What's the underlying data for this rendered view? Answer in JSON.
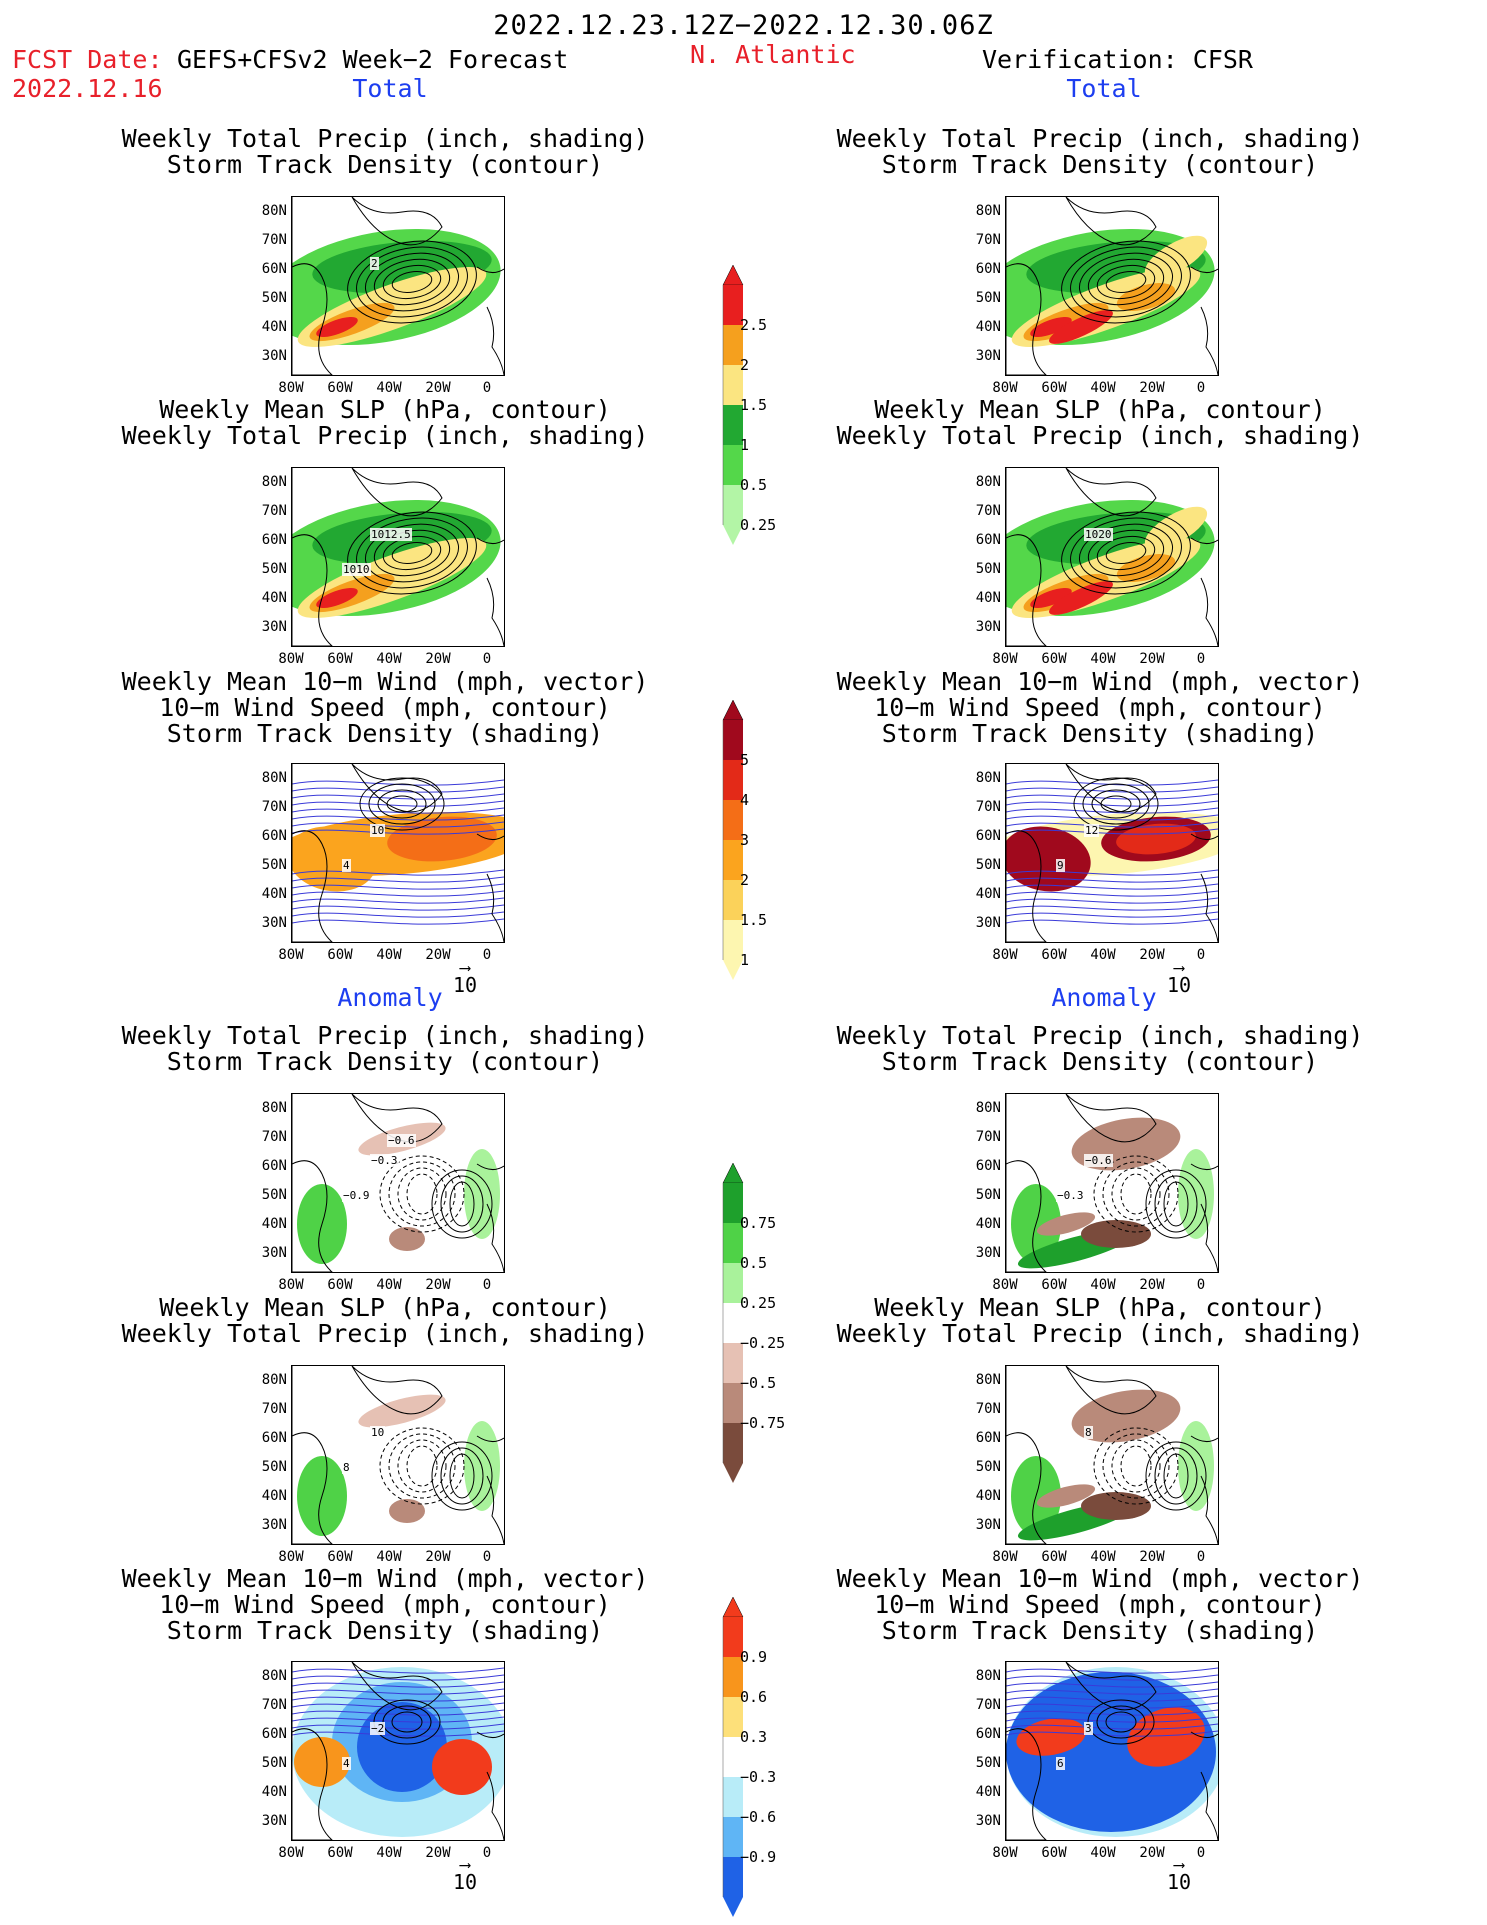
{
  "header": {
    "date_range": "2022.12.23.12Z−2022.12.30.06Z",
    "fcst_label": "FCST Date:",
    "fcst_product": "GEFS+CFSv2 Week−2 Forecast",
    "fcst_date": "2022.12.16",
    "region": "N. Atlantic",
    "verification": "Verification: CFSR"
  },
  "sections": {
    "total": "Total",
    "anomaly": "Anomaly"
  },
  "titles": {
    "precip_track": "Weekly Total Precip (inch, shading)\nStorm Track Density (contour)",
    "slp_precip": "Weekly Mean SLP (hPa, contour)\nWeekly Total Precip (inch, shading)",
    "wind_track": "Weekly Mean 10−m Wind (mph, vector)\n10−m Wind Speed (mph, contour)\nStorm Track Density (shading)"
  },
  "axes": {
    "lat_ticks": [
      "80N",
      "70N",
      "60N",
      "50N",
      "40N",
      "30N"
    ],
    "lon_ticks": [
      "80W",
      "60W",
      "40W",
      "20W",
      "0"
    ]
  },
  "vector_ref": "10",
  "colorbars": {
    "precip_total": {
      "labels": [
        "2.5",
        "2",
        "1.5",
        "1",
        "0.5",
        "0.25"
      ],
      "colors": [
        "#e81f1f",
        "#f5a01e",
        "#fbe581",
        "#22a832",
        "#54d74a",
        "#b3f5a6"
      ]
    },
    "track_total": {
      "labels": [
        "5",
        "4",
        "3",
        "2",
        "1.5",
        "1"
      ],
      "colors": [
        "#a0091d",
        "#e32a18",
        "#f46e17",
        "#fba41e",
        "#fbd25a",
        "#fdf6b0"
      ]
    },
    "precip_anom": {
      "labels": [
        "0.75",
        "0.5",
        "0.25",
        "−0.25",
        "−0.5",
        "−0.75"
      ],
      "colors": [
        "#1ea02c",
        "#4fd247",
        "#a9f29b",
        "#ffffff",
        "#e6c1b4",
        "#b98a7a",
        "#7a4b3c"
      ]
    },
    "track_anom": {
      "labels": [
        "0.9",
        "0.6",
        "0.3",
        "−0.3",
        "−0.6",
        "−0.9"
      ],
      "colors": [
        "#f23b1c",
        "#f8951c",
        "#fde07a",
        "#ffffff",
        "#b8ecf8",
        "#5fb5f5",
        "#1f62e6"
      ]
    }
  },
  "map_labels": {
    "fcst_precip_track": "2",
    "fcst_slp_1": "1012.5",
    "fcst_slp_2": "1010",
    "fcst_wind_1": "10",
    "fcst_wind_2": "4",
    "obs_slp_1": "1020",
    "obs_wind_1": "12",
    "obs_wind_2": "9",
    "anom_fcst_track_1": "−0.3",
    "anom_fcst_track_2": "−0.9",
    "anom_fcst_track_3": "−0.6",
    "anom_fcst_slp_1": "10",
    "anom_fcst_slp_2": "8",
    "anom_obs_track_1": "−0.6",
    "anom_obs_track_2": "−0.3",
    "anom_obs_slp_1": "8",
    "anom_fcst_wind_1": "−2",
    "anom_fcst_wind_2": "4",
    "anom_obs_wind_1": "3",
    "anom_obs_wind_2": "6"
  }
}
